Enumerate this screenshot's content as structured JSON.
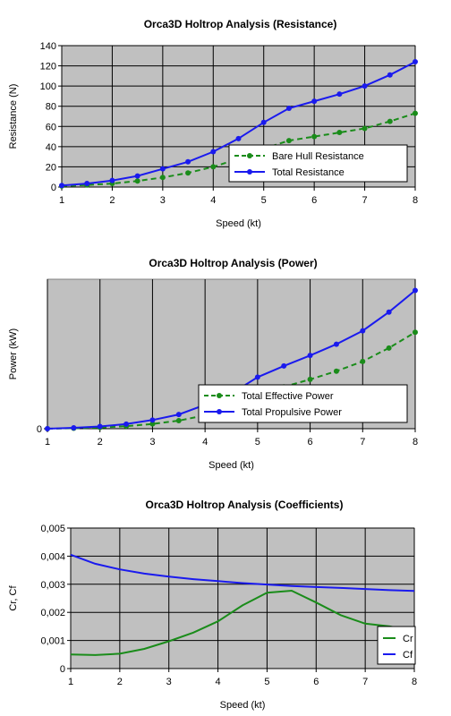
{
  "colors": {
    "plot_bg": "#c0c0c0",
    "grid": "#000000",
    "green": "#1a8c1a",
    "blue": "#1a1aee"
  },
  "chart_data": [
    {
      "type": "line",
      "title": "Orca3D Holtrop Analysis (Resistance)",
      "xlabel": "Speed (kt)",
      "ylabel": "Resistance (N)",
      "xlim": [
        1,
        8
      ],
      "ylim": [
        0,
        140
      ],
      "xticks": [
        "1",
        "2",
        "3",
        "4",
        "5",
        "6",
        "7",
        "8"
      ],
      "yticks": [
        "0",
        "20",
        "40",
        "60",
        "80",
        "100",
        "120",
        "140"
      ],
      "grid": true,
      "legend_position": "lower-right",
      "series": [
        {
          "name": "Bare Hull Resistance",
          "style": "dashed",
          "markers": true,
          "color": "#1a8c1a",
          "x": [
            1,
            1.5,
            2,
            2.5,
            3,
            3.5,
            4,
            4.5,
            5,
            5.5,
            6,
            6.5,
            7,
            7.5,
            8
          ],
          "y": [
            1,
            2,
            3.5,
            6,
            9.5,
            14,
            20,
            28,
            38,
            46,
            50,
            54,
            58,
            65,
            73
          ]
        },
        {
          "name": "Total Resistance",
          "style": "solid",
          "markers": true,
          "color": "#1a1aee",
          "x": [
            1,
            1.5,
            2,
            2.5,
            3,
            3.5,
            4,
            4.5,
            5,
            5.5,
            6,
            6.5,
            7,
            7.5,
            8
          ],
          "y": [
            1.5,
            3.5,
            6.5,
            11,
            18,
            25,
            35,
            48,
            64,
            78,
            85,
            92,
            100,
            111,
            124
          ]
        }
      ]
    },
    {
      "type": "line",
      "title": "Orca3D Holtrop Analysis (Power)",
      "xlabel": "Speed (kt)",
      "ylabel": "Power (kW)",
      "xlim": [
        1,
        8
      ],
      "ylim": [
        0,
        1
      ],
      "xticks": [
        "1",
        "2",
        "3",
        "4",
        "5",
        "6",
        "7",
        "8"
      ],
      "yticks": [
        "0"
      ],
      "grid": true,
      "legend_position": "lower-right",
      "series": [
        {
          "name": "Total Effective Power",
          "style": "dashed",
          "markers": true,
          "color": "#1a8c1a",
          "x": [
            1,
            1.5,
            2,
            2.5,
            3,
            3.5,
            4,
            4.5,
            5,
            5.5,
            6,
            6.5,
            7,
            7.5,
            8
          ],
          "y": [
            0.0,
            0.003,
            0.008,
            0.017,
            0.032,
            0.054,
            0.09,
            0.14,
            0.215,
            0.28,
            0.33,
            0.385,
            0.45,
            0.54,
            0.645
          ]
        },
        {
          "name": "Total Propulsive Power",
          "style": "solid",
          "markers": true,
          "color": "#1a1aee",
          "x": [
            1,
            1.5,
            2,
            2.5,
            3,
            3.5,
            4,
            4.5,
            5,
            5.5,
            6,
            6.5,
            7,
            7.5,
            8
          ],
          "y": [
            0.0,
            0.006,
            0.015,
            0.031,
            0.058,
            0.095,
            0.16,
            0.235,
            0.345,
            0.42,
            0.49,
            0.565,
            0.655,
            0.78,
            0.925
          ]
        }
      ]
    },
    {
      "type": "line",
      "title": "Orca3D Holtrop Analysis (Coefficients)",
      "xlabel": "Speed (kt)",
      "ylabel": "Cr, Cf",
      "xlim": [
        1,
        8
      ],
      "ylim": [
        0,
        0.005
      ],
      "xticks": [
        "1",
        "2",
        "3",
        "4",
        "5",
        "6",
        "7",
        "8"
      ],
      "yticks": [
        "0",
        "0,001",
        "0,002",
        "0,003",
        "0,004",
        "0,005"
      ],
      "grid": true,
      "legend_position": "lower-right",
      "series": [
        {
          "name": "Cr",
          "style": "solid",
          "markers": false,
          "color": "#1a8c1a",
          "x": [
            1,
            1.5,
            2,
            2.5,
            3,
            3.5,
            4,
            4.5,
            5,
            5.5,
            6,
            6.5,
            7,
            7.5,
            8
          ],
          "y": [
            0.0005,
            0.00048,
            0.00053,
            0.0007,
            0.00097,
            0.00128,
            0.00168,
            0.00225,
            0.0027,
            0.00277,
            0.00235,
            0.0019,
            0.0016,
            0.0015,
            0.00133
          ]
        },
        {
          "name": "Cf",
          "style": "solid",
          "markers": false,
          "color": "#1a1aee",
          "x": [
            1,
            1.5,
            2,
            2.5,
            3,
            3.5,
            4,
            4.5,
            5,
            5.5,
            6,
            6.5,
            7,
            7.5,
            8
          ],
          "y": [
            0.00405,
            0.00373,
            0.00353,
            0.00338,
            0.00327,
            0.00318,
            0.00311,
            0.00304,
            0.00299,
            0.00294,
            0.0029,
            0.00287,
            0.00283,
            0.00279,
            0.00276
          ]
        }
      ]
    }
  ]
}
